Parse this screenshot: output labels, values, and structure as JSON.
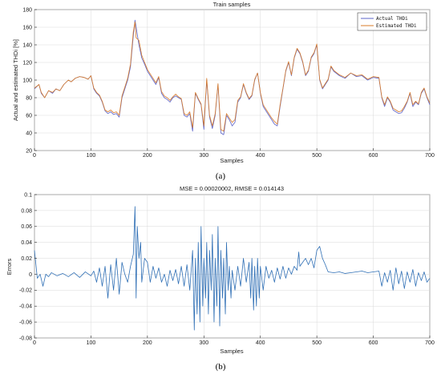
{
  "chart_data": [
    {
      "type": "line",
      "panel_caption": "(a)",
      "title": "Train samples",
      "xlabel": "Samples",
      "ylabel": "Actual and estimated THDi [%]",
      "xlim": [
        0,
        700
      ],
      "ylim": [
        20,
        180
      ],
      "xticks": [
        0,
        100,
        200,
        300,
        400,
        500,
        600,
        700
      ],
      "yticks": [
        20,
        40,
        60,
        80,
        100,
        120,
        140,
        160,
        180
      ],
      "grid": true,
      "legend_position": "top-right",
      "series": [
        {
          "name": "Actual THDi",
          "color": "#5b63c9",
          "x": [
            0,
            8,
            12,
            18,
            25,
            32,
            38,
            45,
            52,
            60,
            65,
            72,
            80,
            88,
            95,
            100,
            105,
            110,
            115,
            120,
            125,
            130,
            135,
            140,
            145,
            150,
            155,
            160,
            165,
            170,
            175,
            178,
            180,
            185,
            190,
            195,
            200,
            205,
            210,
            215,
            220,
            225,
            230,
            235,
            240,
            245,
            250,
            255,
            260,
            265,
            270,
            275,
            280,
            285,
            290,
            295,
            300,
            305,
            310,
            315,
            320,
            325,
            330,
            335,
            340,
            345,
            350,
            355,
            360,
            365,
            370,
            375,
            380,
            385,
            390,
            395,
            400,
            405,
            410,
            415,
            420,
            425,
            430,
            435,
            440,
            445,
            450,
            455,
            460,
            465,
            470,
            475,
            480,
            485,
            490,
            495,
            500,
            505,
            510,
            515,
            520,
            525,
            530,
            540,
            550,
            560,
            570,
            580,
            590,
            600,
            610,
            615,
            620,
            625,
            630,
            635,
            640,
            645,
            650,
            655,
            660,
            665,
            670,
            675,
            680,
            685,
            690,
            695,
            700
          ],
          "y": [
            90,
            95,
            85,
            80,
            88,
            85,
            90,
            88,
            95,
            100,
            98,
            102,
            104,
            103,
            101,
            105,
            90,
            85,
            82,
            75,
            65,
            62,
            64,
            61,
            62,
            58,
            80,
            90,
            100,
            115,
            150,
            168,
            160,
            140,
            125,
            118,
            110,
            105,
            100,
            95,
            103,
            85,
            80,
            78,
            75,
            80,
            82,
            80,
            78,
            60,
            58,
            62,
            42,
            85,
            78,
            72,
            44,
            100,
            58,
            45,
            60,
            95,
            40,
            38,
            60,
            55,
            48,
            52,
            75,
            80,
            95,
            85,
            78,
            82,
            100,
            108,
            85,
            70,
            65,
            60,
            55,
            50,
            48,
            70,
            90,
            110,
            120,
            105,
            125,
            135,
            130,
            120,
            105,
            110,
            125,
            130,
            140,
            100,
            90,
            95,
            100,
            115,
            110,
            105,
            102,
            108,
            104,
            105,
            100,
            103,
            102,
            80,
            70,
            80,
            75,
            66,
            64,
            62,
            63,
            68,
            75,
            85,
            70,
            75,
            72,
            85,
            90,
            80,
            72
          ]
        },
        {
          "name": "Estimated THDi",
          "color": "#d97b29",
          "x": [
            0,
            8,
            12,
            18,
            25,
            32,
            38,
            45,
            52,
            60,
            65,
            72,
            80,
            88,
            95,
            100,
            105,
            110,
            115,
            120,
            125,
            130,
            135,
            140,
            145,
            150,
            155,
            160,
            165,
            170,
            175,
            178,
            180,
            185,
            190,
            195,
            200,
            205,
            210,
            215,
            220,
            225,
            230,
            235,
            240,
            245,
            250,
            255,
            260,
            265,
            270,
            275,
            280,
            285,
            290,
            295,
            300,
            305,
            310,
            315,
            320,
            325,
            330,
            335,
            340,
            345,
            350,
            355,
            360,
            365,
            370,
            375,
            380,
            385,
            390,
            395,
            400,
            405,
            410,
            415,
            420,
            425,
            430,
            435,
            440,
            445,
            450,
            455,
            460,
            465,
            470,
            475,
            480,
            485,
            490,
            495,
            500,
            505,
            510,
            515,
            520,
            525,
            530,
            540,
            550,
            560,
            570,
            580,
            590,
            600,
            610,
            615,
            620,
            625,
            630,
            635,
            640,
            645,
            650,
            655,
            660,
            665,
            670,
            675,
            680,
            685,
            690,
            695,
            700
          ],
          "y": [
            91,
            95,
            86,
            80,
            88,
            86,
            90,
            88,
            95,
            100,
            98,
            102,
            104,
            103,
            101,
            105,
            91,
            86,
            83,
            76,
            66,
            64,
            66,
            63,
            64,
            60,
            82,
            92,
            102,
            118,
            155,
            166,
            148,
            145,
            128,
            120,
            112,
            107,
            102,
            97,
            104,
            87,
            82,
            80,
            77,
            81,
            84,
            81,
            79,
            62,
            60,
            64,
            46,
            86,
            79,
            73,
            48,
            102,
            60,
            48,
            62,
            96,
            44,
            42,
            62,
            57,
            52,
            55,
            77,
            81,
            96,
            86,
            79,
            83,
            101,
            108,
            86,
            72,
            67,
            62,
            57,
            53,
            50,
            72,
            91,
            111,
            121,
            106,
            126,
            136,
            131,
            121,
            106,
            111,
            126,
            131,
            141,
            101,
            91,
            96,
            101,
            116,
            111,
            106,
            103,
            108,
            105,
            106,
            101,
            104,
            103,
            81,
            72,
            81,
            76,
            68,
            66,
            64,
            65,
            70,
            76,
            86,
            72,
            76,
            73,
            86,
            91,
            81,
            74
          ]
        }
      ]
    },
    {
      "type": "line",
      "panel_caption": "(b)",
      "title": "MSE = 0.00020002, RMSE = 0.014143",
      "xlabel": "Samples",
      "ylabel": "Errors",
      "xlim": [
        0,
        700
      ],
      "ylim": [
        -0.08,
        0.1
      ],
      "xticks": [
        0,
        100,
        200,
        300,
        400,
        500,
        600,
        700
      ],
      "yticks": [
        -0.08,
        -0.06,
        -0.04,
        -0.02,
        0,
        0.02,
        0.04,
        0.06,
        0.08,
        0.1
      ],
      "grid": true,
      "series": [
        {
          "color": "#2f6fb5",
          "x": [
            0,
            5,
            10,
            15,
            20,
            25,
            30,
            40,
            50,
            60,
            70,
            80,
            90,
            100,
            105,
            110,
            115,
            120,
            125,
            130,
            135,
            140,
            145,
            150,
            155,
            160,
            165,
            170,
            175,
            178,
            180,
            182,
            185,
            188,
            190,
            195,
            200,
            205,
            210,
            215,
            220,
            225,
            230,
            235,
            240,
            245,
            250,
            255,
            260,
            265,
            270,
            275,
            280,
            283,
            285,
            288,
            290,
            293,
            295,
            298,
            300,
            303,
            305,
            308,
            310,
            313,
            315,
            318,
            320,
            323,
            325,
            328,
            330,
            333,
            335,
            338,
            340,
            343,
            345,
            348,
            350,
            355,
            360,
            365,
            370,
            375,
            380,
            383,
            385,
            388,
            390,
            393,
            395,
            398,
            400,
            405,
            410,
            415,
            420,
            425,
            430,
            435,
            440,
            445,
            450,
            455,
            460,
            465,
            468,
            470,
            475,
            480,
            485,
            490,
            495,
            500,
            505,
            510,
            515,
            520,
            530,
            540,
            550,
            560,
            570,
            580,
            590,
            600,
            610,
            615,
            620,
            625,
            630,
            635,
            640,
            645,
            650,
            655,
            660,
            665,
            670,
            675,
            680,
            685,
            690,
            695,
            700
          ],
          "y": [
            0.03,
            -0.005,
            0.0,
            -0.015,
            0.0,
            -0.003,
            0.002,
            -0.002,
            0.001,
            -0.003,
            0.002,
            -0.004,
            0.003,
            -0.002,
            0.004,
            -0.01,
            0.008,
            -0.015,
            0.01,
            -0.03,
            0.012,
            -0.02,
            0.02,
            -0.025,
            0.015,
            0.0,
            -0.01,
            0.01,
            0.025,
            0.085,
            -0.03,
            0.06,
            0.02,
            0.04,
            -0.01,
            0.02,
            0.015,
            -0.01,
            0.01,
            -0.005,
            0.008,
            -0.01,
            0.0,
            -0.015,
            0.005,
            -0.008,
            0.006,
            -0.012,
            0.01,
            -0.015,
            0.012,
            -0.02,
            0.03,
            -0.07,
            0.02,
            -0.05,
            0.04,
            -0.06,
            0.06,
            -0.04,
            0.02,
            -0.03,
            0.04,
            -0.05,
            0.03,
            -0.02,
            0.05,
            -0.06,
            0.02,
            -0.04,
            0.06,
            -0.065,
            0.03,
            -0.03,
            0.02,
            -0.05,
            0.04,
            -0.02,
            0.01,
            -0.03,
            0.005,
            -0.02,
            0.01,
            -0.015,
            0.02,
            -0.01,
            0.015,
            -0.03,
            0.02,
            -0.045,
            0.01,
            -0.04,
            0.02,
            -0.03,
            0.01,
            -0.02,
            0.01,
            -0.005,
            0.005,
            -0.01,
            0.008,
            -0.006,
            0.01,
            -0.005,
            0.008,
            0.0,
            0.01,
            0.005,
            0.028,
            0.01,
            0.015,
            0.02,
            0.012,
            0.02,
            0.008,
            0.03,
            0.035,
            0.02,
            0.012,
            0.003,
            0.002,
            0.003,
            0.001,
            0.002,
            0.003,
            0.004,
            0.002,
            0.003,
            0.004,
            -0.015,
            0.002,
            -0.01,
            0.005,
            -0.02,
            0.008,
            -0.012,
            0.004,
            -0.018,
            0.003,
            -0.01,
            0.006,
            -0.015,
            0.002,
            -0.008,
            0.003,
            -0.01,
            -0.005
          ]
        }
      ]
    }
  ]
}
